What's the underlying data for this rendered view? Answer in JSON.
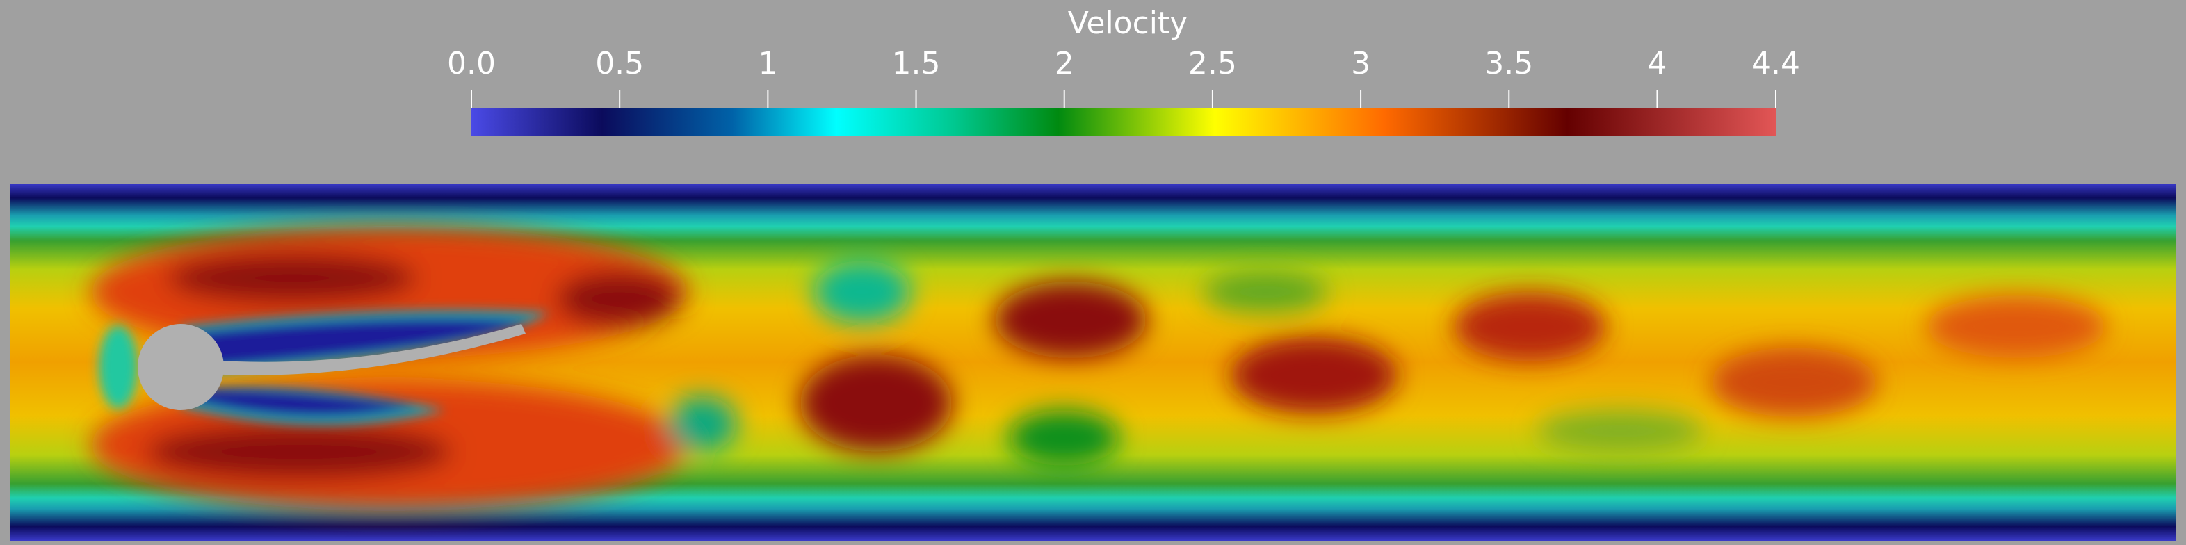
{
  "colorbar": {
    "title": "Velocity",
    "range": [
      0,
      4.4
    ],
    "ticks": [
      {
        "value": 0,
        "label": "0.0"
      },
      0.5,
      1,
      1.5,
      2,
      2.5,
      3,
      3.5,
      4,
      4.4
    ]
  }
}
